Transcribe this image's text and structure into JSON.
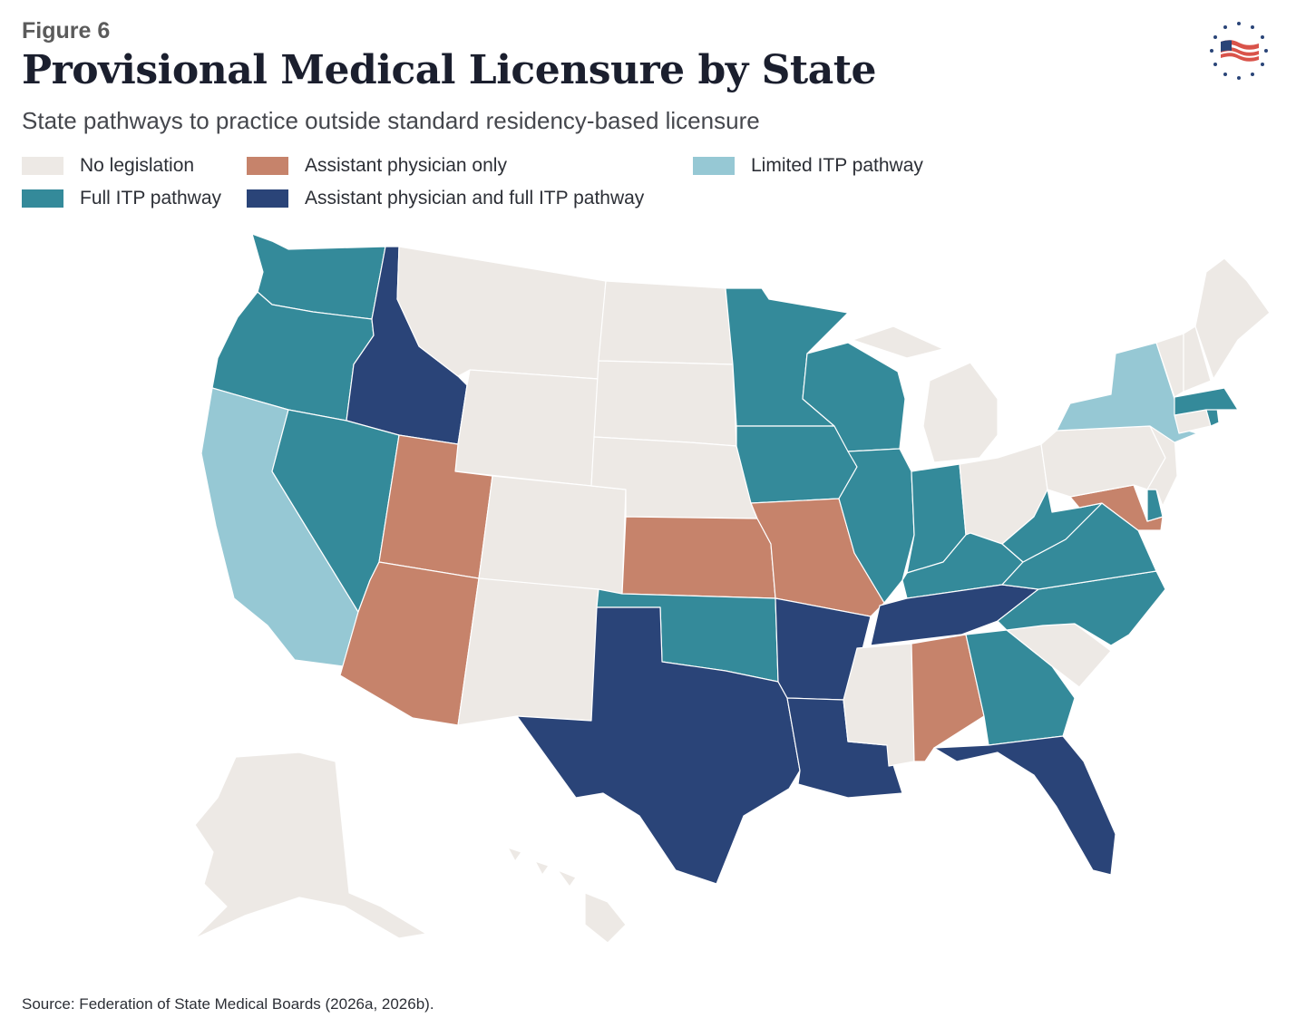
{
  "header": {
    "figure_label": "Figure 6",
    "title": "Provisional Medical Licensure by State",
    "subtitle": "State pathways to practice outside standard residency-based licensure"
  },
  "legend": [
    {
      "key": "none",
      "label": "No legislation",
      "color": "#ede9e5"
    },
    {
      "key": "ap",
      "label": "Assistant physician only",
      "color": "#c6836b"
    },
    {
      "key": "limited",
      "label": "Limited ITP pathway",
      "color": "#96c8d4"
    },
    {
      "key": "full",
      "label": "Full ITP pathway",
      "color": "#348a9a"
    },
    {
      "key": "both",
      "label": "Assistant physician and full ITP pathway",
      "color": "#2a4478"
    }
  ],
  "states": {
    "WA": "full",
    "OR": "full",
    "CA": "limited",
    "ID": "both",
    "NV": "full",
    "MT": "none",
    "WY": "none",
    "UT": "ap",
    "AZ": "ap",
    "CO": "none",
    "NM": "none",
    "ND": "none",
    "SD": "none",
    "NE": "none",
    "KS": "ap",
    "OK": "full",
    "TX": "both",
    "MN": "full",
    "IA": "full",
    "MO": "ap",
    "AR": "both",
    "LA": "both",
    "WI": "full",
    "IL": "full",
    "MI": "none",
    "IN": "full",
    "OH": "none",
    "KY": "full",
    "TN": "both",
    "MS": "none",
    "AL": "ap",
    "GA": "full",
    "FL": "both",
    "SC": "none",
    "NC": "full",
    "VA": "full",
    "WV": "full",
    "MD": "ap",
    "DE": "full",
    "PA": "none",
    "NJ": "none",
    "NY": "limited",
    "CT": "none",
    "RI": "full",
    "MA": "full",
    "VT": "none",
    "NH": "none",
    "ME": "none",
    "AK": "none",
    "HI": "none"
  },
  "source": "Source: Federation of State Medical Boards (2026a, 2026b)."
}
